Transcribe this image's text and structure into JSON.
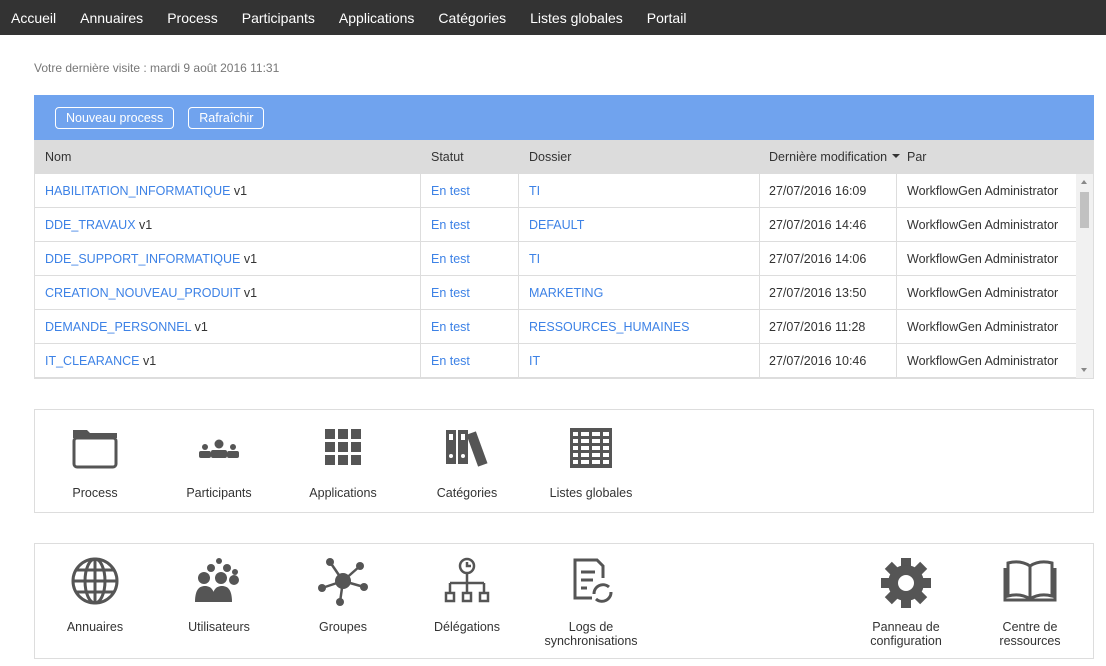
{
  "nav": [
    "Accueil",
    "Annuaires",
    "Process",
    "Participants",
    "Applications",
    "Catégories",
    "Listes globales",
    "Portail"
  ],
  "last_visit": "Votre dernière visite : mardi 9 août 2016 11:31",
  "toolbar": {
    "new": "Nouveau process",
    "refresh": "Rafraîchir"
  },
  "columns": [
    "Nom",
    "Statut",
    "Dossier",
    "Dernière modification",
    "Par"
  ],
  "sort": "descending",
  "rows": [
    {
      "name": "HABILITATION_INFORMATIQUE",
      "version": "v1",
      "status": "En test",
      "folder": "TI",
      "modified": "27/07/2016 16:09",
      "by": "WorkflowGen Administrator"
    },
    {
      "name": "DDE_TRAVAUX",
      "version": "v1",
      "status": "En test",
      "folder": "DEFAULT",
      "modified": "27/07/2016 14:46",
      "by": "WorkflowGen Administrator"
    },
    {
      "name": "DDE_SUPPORT_INFORMATIQUE",
      "version": "v1",
      "status": "En test",
      "folder": "TI",
      "modified": "27/07/2016 14:06",
      "by": "WorkflowGen Administrator"
    },
    {
      "name": "CREATION_NOUVEAU_PRODUIT",
      "version": "v1",
      "status": "En test",
      "folder": "MARKETING",
      "modified": "27/07/2016 13:50",
      "by": "WorkflowGen Administrator"
    },
    {
      "name": "DEMANDE_PERSONNEL",
      "version": "v1",
      "status": "En test",
      "folder": "RESSOURCES_HUMAINES",
      "modified": "27/07/2016 11:28",
      "by": "WorkflowGen Administrator"
    },
    {
      "name": "IT_CLEARANCE",
      "version": "v1",
      "status": "En test",
      "folder": "IT",
      "modified": "27/07/2016 10:46",
      "by": "WorkflowGen Administrator"
    }
  ],
  "tiles1": [
    {
      "label": "Process",
      "icon": "folder-icon"
    },
    {
      "label": "Participants",
      "icon": "participants-icon"
    },
    {
      "label": "Applications",
      "icon": "grid-icon"
    },
    {
      "label": "Catégories",
      "icon": "binders-icon"
    },
    {
      "label": "Listes globales",
      "icon": "table-icon"
    }
  ],
  "tiles2": [
    {
      "label": "Annuaires",
      "icon": "globe-icon"
    },
    {
      "label": "Utilisateurs",
      "icon": "users-icon"
    },
    {
      "label": "Groupes",
      "icon": "network-icon"
    },
    {
      "label": "Délégations",
      "icon": "hierarchy-clock-icon"
    },
    {
      "label": "Logs de synchronisations",
      "icon": "sync-log-icon"
    },
    {
      "label": "Panneau de configuration",
      "icon": "gear-icon"
    },
    {
      "label": "Centre de ressources",
      "icon": "book-icon"
    }
  ],
  "colors": {
    "topbar": "#333333",
    "toolbar": "#70a3ee",
    "link": "#3d82e6",
    "icon": "#555555"
  }
}
